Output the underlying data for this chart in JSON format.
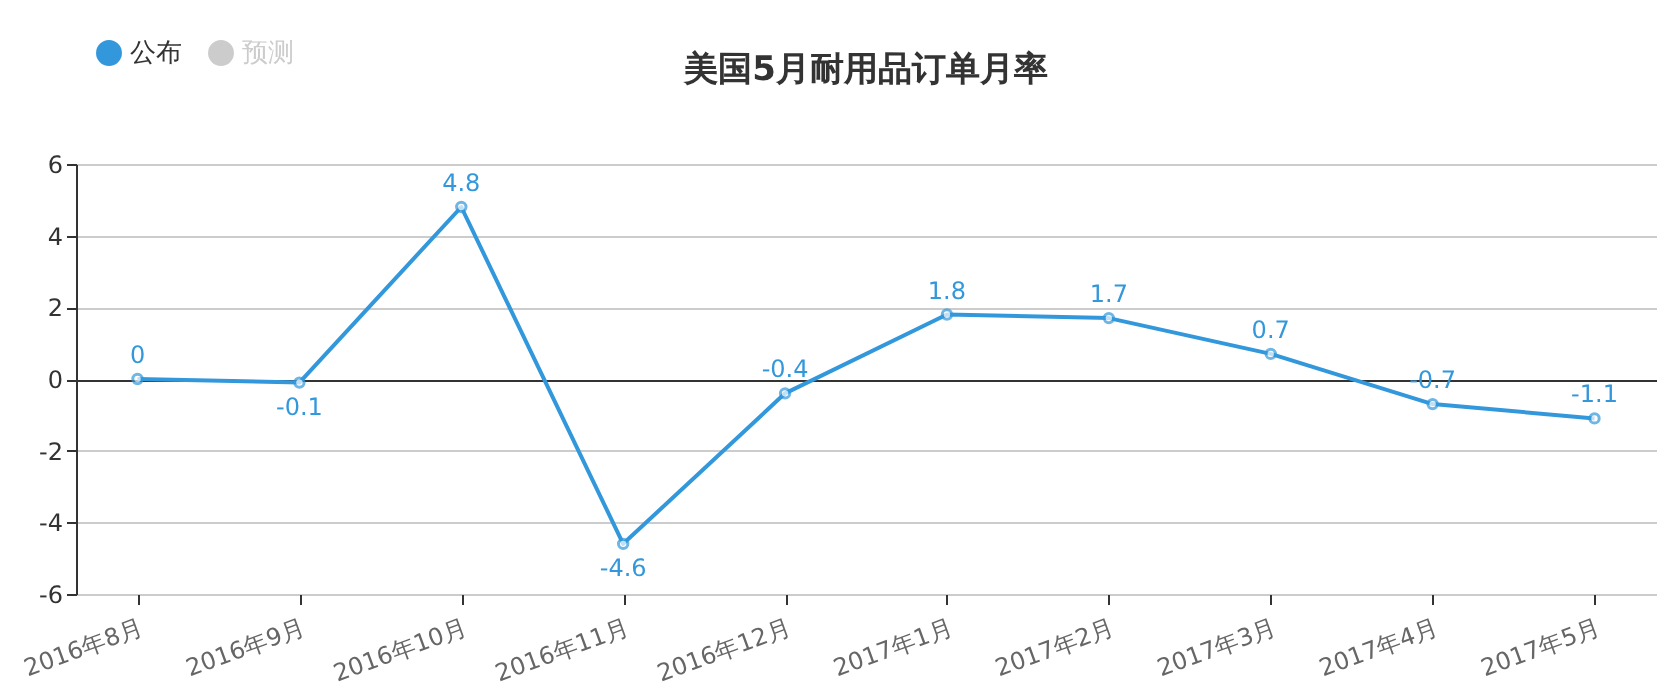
{
  "chart_data": {
    "type": "line",
    "title": "美国5月耐用品订单月率",
    "categories": [
      "2016年8月",
      "2016年9月",
      "2016年10月",
      "2016年11月",
      "2016年12月",
      "2017年1月",
      "2017年2月",
      "2017年3月",
      "2017年4月",
      "2017年5月"
    ],
    "series": [
      {
        "name": "公布",
        "color": "#3398db",
        "values": [
          0,
          -0.1,
          4.8,
          -4.6,
          -0.4,
          1.8,
          1.7,
          0.7,
          -0.7,
          -1.1
        ]
      },
      {
        "name": "预测",
        "color": "#cccccc",
        "values": [
          null,
          null,
          null,
          null,
          null,
          null,
          null,
          null,
          null,
          null
        ]
      }
    ],
    "ylim": [
      -6,
      6
    ],
    "yticks": [
      -6,
      -4,
      -2,
      0,
      2,
      4,
      6
    ],
    "grid": "y",
    "legend": "top left",
    "marker": "circle",
    "line_style": "solid",
    "data_labels": true
  }
}
